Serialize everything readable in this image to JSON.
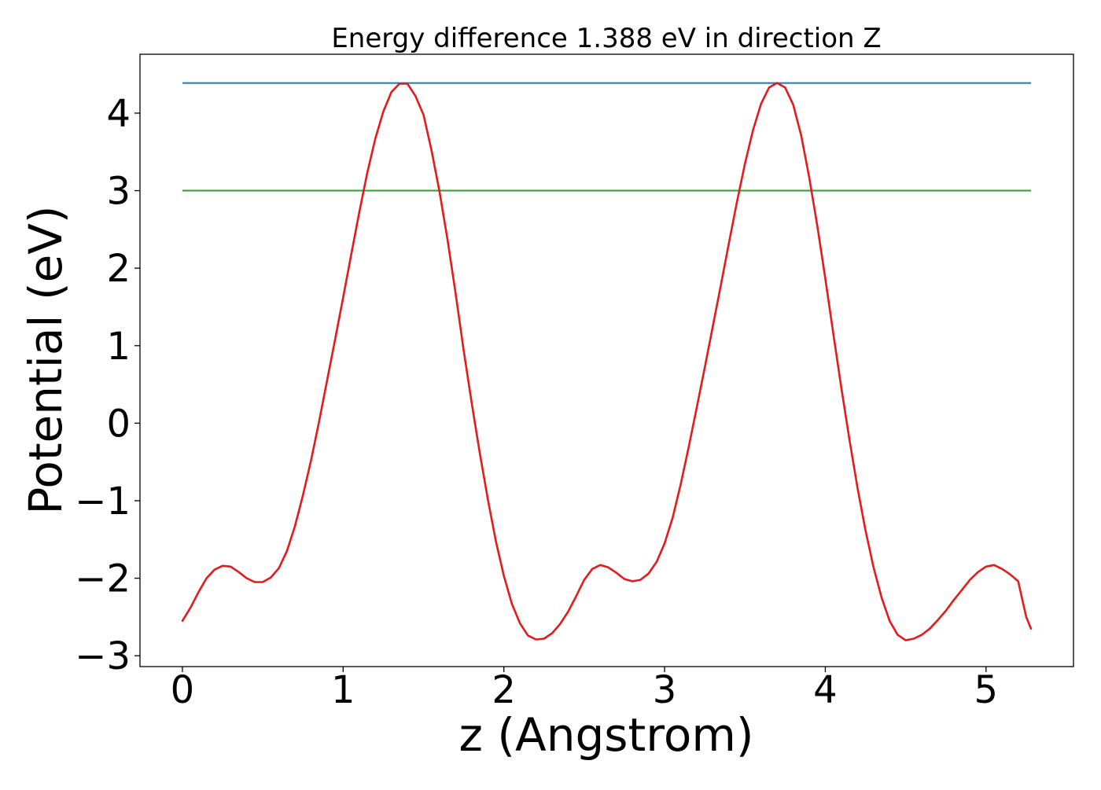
{
  "chart_data": {
    "type": "line",
    "title": "Energy difference 1.388 eV in direction Z",
    "xlabel": "z (Angstrom)",
    "ylabel": "Potential (eV)",
    "xlim": [
      -0.264,
      5.544
    ],
    "ylim": [
      -3.14,
      4.76
    ],
    "x_ticks": [
      0,
      1,
      2,
      3,
      4,
      5
    ],
    "x_tick_labels": [
      "0",
      "1",
      "2",
      "3",
      "4",
      "5"
    ],
    "y_ticks": [
      -3,
      -2,
      -1,
      0,
      1,
      2,
      3,
      4
    ],
    "y_tick_labels": [
      "−3",
      "−2",
      "−1",
      "0",
      "1",
      "2",
      "3",
      "4"
    ],
    "grid": false,
    "legend": "none",
    "series": [
      {
        "kind": "hline",
        "color": "#1f77b4",
        "y": 4.388,
        "x_start": 0,
        "x_end": 5.28
      },
      {
        "kind": "hline",
        "color": "#2ca02c",
        "y": 3.0,
        "x_start": 0,
        "x_end": 5.28
      },
      {
        "kind": "curve",
        "color": "#e41a1c",
        "x": [
          0,
          0.05,
          0.1,
          0.15,
          0.2,
          0.25,
          0.3,
          0.35,
          0.4,
          0.45,
          0.5,
          0.55,
          0.6,
          0.65,
          0.7,
          0.75,
          0.8,
          0.85,
          0.9,
          0.95,
          1.0,
          1.05,
          1.1,
          1.15,
          1.2,
          1.25,
          1.3,
          1.35,
          1.4,
          1.45,
          1.5,
          1.55,
          1.6,
          1.65,
          1.7,
          1.75,
          1.8,
          1.85,
          1.9,
          1.95,
          2.0,
          2.05,
          2.1,
          2.15,
          2.2,
          2.25,
          2.3,
          2.35,
          2.4,
          2.45,
          2.5,
          2.55,
          2.6,
          2.65,
          2.7,
          2.75,
          2.8,
          2.85,
          2.9,
          2.95,
          3.0,
          3.05,
          3.1,
          3.15,
          3.2,
          3.25,
          3.3,
          3.35,
          3.4,
          3.45,
          3.5,
          3.55,
          3.6,
          3.65,
          3.7,
          3.75,
          3.8,
          3.85,
          3.9,
          3.95,
          4.0,
          4.05,
          4.1,
          4.15,
          4.2,
          4.25,
          4.3,
          4.35,
          4.4,
          4.45,
          4.5,
          4.55,
          4.6,
          4.65,
          4.7,
          4.75,
          4.8,
          4.85,
          4.9,
          4.95,
          5.0,
          5.05,
          5.1,
          5.15,
          5.2,
          5.25,
          5.28
        ],
        "y": [
          -2.55,
          -2.38,
          -2.18,
          -2.0,
          -1.89,
          -1.84,
          -1.85,
          -1.92,
          -2.0,
          -2.05,
          -2.05,
          -1.99,
          -1.87,
          -1.65,
          -1.33,
          -0.93,
          -0.48,
          0.02,
          0.55,
          1.08,
          1.62,
          2.17,
          2.72,
          3.23,
          3.67,
          4.02,
          4.27,
          4.38,
          4.38,
          4.22,
          3.98,
          3.52,
          2.98,
          2.36,
          1.67,
          0.94,
          0.26,
          -0.38,
          -0.98,
          -1.52,
          -1.97,
          -2.33,
          -2.58,
          -2.74,
          -2.79,
          -2.78,
          -2.71,
          -2.59,
          -2.43,
          -2.23,
          -2.02,
          -1.88,
          -1.83,
          -1.86,
          -1.93,
          -2.01,
          -2.04,
          -2.02,
          -1.94,
          -1.79,
          -1.55,
          -1.22,
          -0.79,
          -0.31,
          0.2,
          0.72,
          1.25,
          1.78,
          2.32,
          2.85,
          3.35,
          3.78,
          4.12,
          4.33,
          4.39,
          4.33,
          4.11,
          3.71,
          3.17,
          2.55,
          1.87,
          1.15,
          0.45,
          -0.21,
          -0.83,
          -1.38,
          -1.86,
          -2.25,
          -2.55,
          -2.73,
          -2.8,
          -2.78,
          -2.73,
          -2.65,
          -2.54,
          -2.42,
          -2.28,
          -2.15,
          -2.02,
          -1.92,
          -1.85,
          -1.83,
          -1.88,
          -1.95,
          -2.04,
          -2.5,
          -2.65
        ]
      }
    ]
  }
}
